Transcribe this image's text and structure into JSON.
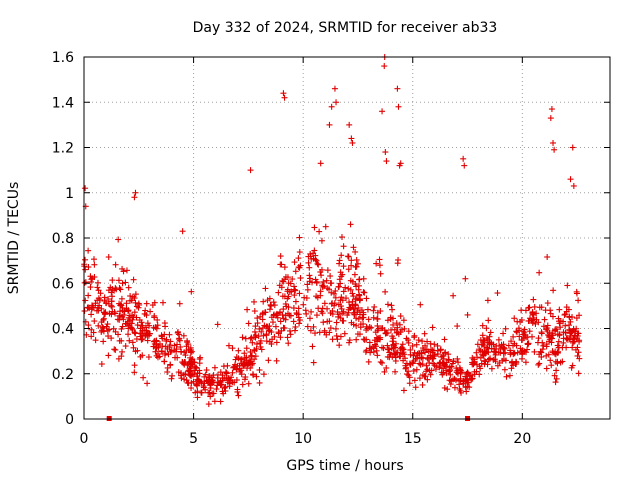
{
  "chart_data": {
    "type": "scatter",
    "title": "Day 332 of 2024, SRMTID for receiver ab33",
    "xlabel": "GPS time / hours",
    "ylabel": "SRMTID / TECUs",
    "xlim": [
      0,
      24
    ],
    "ylim": [
      0,
      1.6
    ],
    "xticks": [
      0,
      5,
      10,
      15,
      20
    ],
    "xtick_labels": [
      "0",
      "5",
      "10",
      "15",
      "20"
    ],
    "yticks": [
      0,
      0.2,
      0.4,
      0.6,
      0.8,
      1.0,
      1.2,
      1.4,
      1.6
    ],
    "ytick_labels": [
      "0",
      "0.2",
      "0.4",
      "0.6",
      "0.8",
      "1",
      "1.2",
      "1.4",
      "1.6"
    ],
    "grid": true,
    "marker": "+",
    "color": "#e00000",
    "gap_markers": [
      1.15,
      17.5
    ],
    "envelope": {
      "x": [
        0.0,
        0.5,
        1.0,
        1.5,
        2.0,
        2.5,
        3.0,
        3.5,
        4.0,
        4.5,
        5.0,
        5.5,
        6.0,
        6.5,
        7.0,
        7.5,
        8.0,
        8.5,
        9.0,
        9.5,
        10.0,
        10.5,
        11.0,
        11.5,
        12.0,
        12.5,
        13.0,
        13.5,
        14.0,
        14.5,
        15.0,
        15.5,
        16.0,
        16.5,
        17.0,
        17.5,
        18.0,
        18.5,
        19.0,
        19.5,
        20.0,
        20.5,
        21.0,
        21.5,
        22.0,
        22.5,
        22.6
      ],
      "median": [
        0.55,
        0.5,
        0.45,
        0.48,
        0.44,
        0.4,
        0.36,
        0.33,
        0.3,
        0.28,
        0.22,
        0.15,
        0.16,
        0.18,
        0.21,
        0.26,
        0.34,
        0.4,
        0.48,
        0.52,
        0.56,
        0.6,
        0.55,
        0.5,
        0.56,
        0.52,
        0.4,
        0.36,
        0.34,
        0.3,
        0.26,
        0.28,
        0.26,
        0.24,
        0.18,
        0.16,
        0.3,
        0.32,
        0.28,
        0.26,
        0.34,
        0.4,
        0.36,
        0.34,
        0.4,
        0.38,
        0.36
      ],
      "spread": [
        0.22,
        0.2,
        0.18,
        0.2,
        0.18,
        0.16,
        0.14,
        0.12,
        0.12,
        0.12,
        0.1,
        0.06,
        0.08,
        0.08,
        0.1,
        0.12,
        0.16,
        0.18,
        0.22,
        0.22,
        0.24,
        0.26,
        0.24,
        0.22,
        0.22,
        0.22,
        0.18,
        0.16,
        0.16,
        0.14,
        0.12,
        0.12,
        0.1,
        0.1,
        0.07,
        0.06,
        0.1,
        0.1,
        0.09,
        0.1,
        0.16,
        0.18,
        0.16,
        0.16,
        0.18,
        0.16,
        0.16
      ]
    },
    "outliers": [
      [
        0.05,
        1.02
      ],
      [
        0.08,
        0.94
      ],
      [
        2.3,
        0.98
      ],
      [
        2.35,
        1.0
      ],
      [
        4.5,
        0.83
      ],
      [
        7.6,
        1.1
      ],
      [
        9.1,
        1.44
      ],
      [
        9.15,
        1.42
      ],
      [
        10.8,
        1.13
      ],
      [
        11.2,
        1.3
      ],
      [
        11.3,
        1.38
      ],
      [
        11.45,
        1.46
      ],
      [
        11.5,
        1.4
      ],
      [
        12.1,
        1.3
      ],
      [
        12.2,
        1.24
      ],
      [
        12.25,
        1.22
      ],
      [
        13.6,
        1.36
      ],
      [
        13.7,
        1.56
      ],
      [
        13.72,
        1.6
      ],
      [
        13.75,
        1.18
      ],
      [
        13.8,
        1.14
      ],
      [
        14.3,
        1.46
      ],
      [
        14.35,
        1.38
      ],
      [
        14.4,
        1.12
      ],
      [
        14.45,
        1.13
      ],
      [
        17.3,
        1.15
      ],
      [
        17.35,
        1.12
      ],
      [
        17.4,
        0.62
      ],
      [
        21.3,
        1.33
      ],
      [
        21.35,
        1.37
      ],
      [
        21.4,
        1.22
      ],
      [
        21.45,
        1.19
      ],
      [
        22.2,
        1.06
      ],
      [
        22.3,
        1.2
      ],
      [
        22.35,
        1.03
      ]
    ]
  }
}
